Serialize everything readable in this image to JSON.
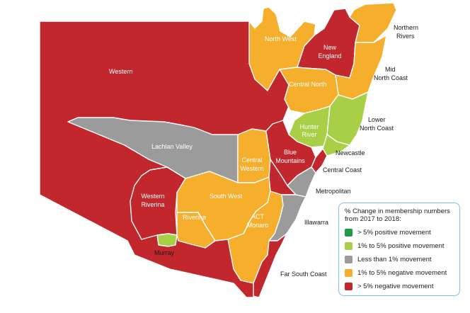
{
  "colors": {
    "red": "#c1272d",
    "orange": "#f6ae2d",
    "grey": "#9b9b9b",
    "lime": "#a9cf46",
    "green": "#1e9b45"
  },
  "regions": {
    "western": "Western",
    "north_west": "North West",
    "new_england": "New England",
    "northern_rivers": "Northern Rivers",
    "mid_north_coast": "Mid North Coast",
    "central_north": "Central North",
    "lower_north_coast": "Lower North Coast",
    "hunter_river": "Hunter River",
    "newcastle": "Newcastle",
    "lachlan_valley": "Lachlan Valley",
    "central_western": "Central Western",
    "blue_mountains": "Blue Mountains",
    "central_coast": "Central Coast",
    "metropolitan": "Metropolitan",
    "western_riverina": "Western Riverina",
    "south_west": "South West",
    "riverina": "Riverina",
    "act_monaro": "ACT Monaro",
    "illawarra": "Illawarra",
    "murray": "Murray",
    "far_south_coast": "Far South Coast"
  },
  "legend": {
    "title": "% Change in membership numbers from 2017 to 2018:",
    "items": [
      {
        "label": "> 5% positive movement",
        "color": "#1e9b45"
      },
      {
        "label": "1% to 5% positive movement",
        "color": "#a9cf46"
      },
      {
        "label": "Less than 1% movement",
        "color": "#9b9b9b"
      },
      {
        "label": "1% to 5% negative movement",
        "color": "#f6ae2d"
      },
      {
        "label": "> 5% negative movement",
        "color": "#c1272d"
      }
    ]
  }
}
